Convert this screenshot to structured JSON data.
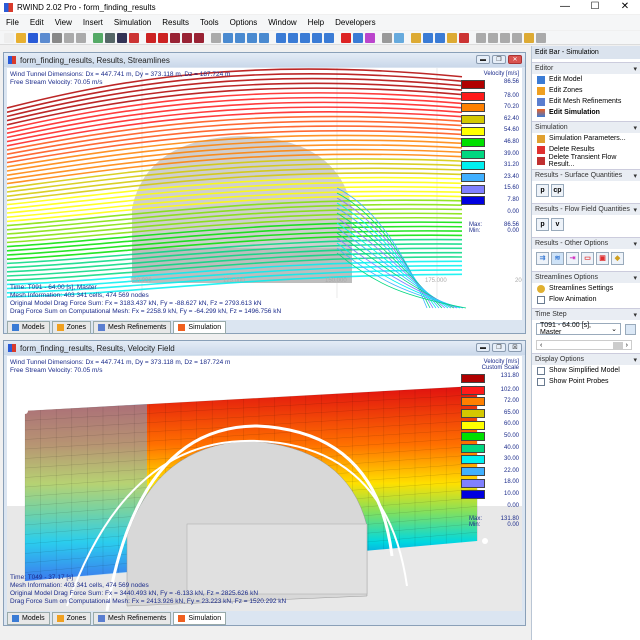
{
  "app": {
    "title": "RWIND 2.02 Pro - form_finding_results",
    "minimize": "—",
    "maximize": "☐",
    "close": "✕"
  },
  "menu": [
    "File",
    "Edit",
    "View",
    "Insert",
    "Simulation",
    "Results",
    "Tools",
    "Options",
    "Window",
    "Help",
    "Developers"
  ],
  "toolbar": [
    "new-icon",
    "open-icon",
    "save-icon",
    "print-preview-icon",
    "print-icon",
    "undo-icon",
    "redo-icon",
    "model-icon",
    "mesh-icon",
    "axes-icon",
    "grid-icon",
    "view-front-icon",
    "view-back-icon",
    "render-icon",
    "render2-icon",
    "render3-icon",
    "select-icon",
    "zoom-window-icon",
    "zoom-icon",
    "zoom-fit-icon",
    "zoom-all-icon",
    "rotate-icon",
    "rotate2-icon",
    "rotate3-icon",
    "iso-view-icon",
    "axis-view-icon",
    "color-icon",
    "box-icon",
    "measure-icon",
    "align-icon",
    "sphere-icon",
    "probe-icon",
    "probe-active-icon",
    "probe2-icon",
    "probe3-icon",
    "cube-icon",
    "plane-icon",
    "square-icon",
    "line-icon",
    "arrow-icon",
    "label-icon",
    "settings-icon"
  ],
  "top_window": {
    "title": "form_finding_results, Results, Streamlines",
    "info_lines": [
      "Wind Tunnel Dimensions: Dx = 447.741 m, Dy = 373.118 m, Dz = 187.724 m",
      "Free Stream Velocity: 70.05 m/s"
    ],
    "footer_lines": [
      "Time: T091 - 64.00 [s], Master",
      "Mesh Information: 403 341 cells, 474 569 nodes",
      "Original Model Drag Force Sum: Fx = 3183.437 kN, Fy = -88.627 kN, Fz = 2793.613 kN",
      "Drag Force Sum on Computational Mesh: Fx = 2258.9 kN, Fy = -64.299 kN, Fz = 1496.756 kN"
    ],
    "axis_ticks": [
      "100.000",
      "125.000",
      "150.000",
      "175.000",
      "200.000"
    ],
    "legend": {
      "title": "Velocity [m/s]",
      "values": [
        "86.56",
        "78.00",
        "70.20",
        "62.40",
        "54.60",
        "46.80",
        "39.00",
        "31.20",
        "23.40",
        "15.60",
        "7.80",
        "0.00"
      ],
      "max_label": "Max:",
      "max": "86.56",
      "min_label": "Min:",
      "min": "0.00"
    }
  },
  "bottom_window": {
    "title": "form_finding_results, Results, Velocity Field",
    "info_lines": [
      "Wind Tunnel Dimensions: Dx = 447.741 m, Dy = 373.118 m, Dz = 187.724 m",
      "Free Stream Velocity: 70.05 m/s"
    ],
    "footer_lines": [
      "Time: T049 - 37.17 [s]",
      "Mesh Information: 403 341 cells, 474 569 nodes",
      "Original Model Drag Force Sum: Fx = 3440.493 kN, Fy = -6.133 kN, Fz = 2825.626 kN",
      "Drag Force Sum on Computational Mesh: Fx = 2413.926 kN, Fy = 23.223 kN, Fz = 1520.292 kN"
    ],
    "legend": {
      "title": "Velocity [m/s]",
      "subtitle": "Custom Scale",
      "values": [
        "131.80",
        "102.00",
        "72.00",
        "65.00",
        "60.00",
        "50.00",
        "40.00",
        "30.00",
        "22.00",
        "18.00",
        "10.00",
        "0.00"
      ],
      "max_label": "Max:",
      "max": "131.80",
      "min_label": "Min:",
      "min": "0.00"
    }
  },
  "legend_colors": [
    "#b00000",
    "#ff1a1a",
    "#ff8000",
    "#d4c800",
    "#ffff00",
    "#00e000",
    "#00d880",
    "#00f0f0",
    "#40b0ff",
    "#8080ff",
    "#0000e0"
  ],
  "tabs": [
    "Models",
    "Zones",
    "Mesh Refinements",
    "Simulation"
  ],
  "edit_bar": {
    "title": "Edit Bar - Simulation",
    "editor": {
      "header": "Editor",
      "items": [
        "Edit Model",
        "Edit Zones",
        "Edit Mesh Refinements",
        "Edit Simulation"
      ]
    },
    "simulation": {
      "header": "Simulation",
      "items": [
        "Simulation Parameters...",
        "Delete Results",
        "Delete Transient Flow Result..."
      ]
    },
    "surface": {
      "header": "Results - Surface Quantities",
      "buttons": [
        "p",
        "cp"
      ]
    },
    "flow": {
      "header": "Results - Flow Field Quantities",
      "buttons": [
        "p",
        "v"
      ]
    },
    "other": {
      "header": "Results - Other Options"
    },
    "streamlines": {
      "header": "Streamlines Options",
      "settings": "Streamlines Settings",
      "animation": "Flow Animation"
    },
    "timestep": {
      "header": "Time Step",
      "value": "T091 - 64.00 [s], Master"
    },
    "display": {
      "header": "Display Options",
      "items": [
        "Show Simplified Model",
        "Show Point Probes"
      ]
    }
  }
}
